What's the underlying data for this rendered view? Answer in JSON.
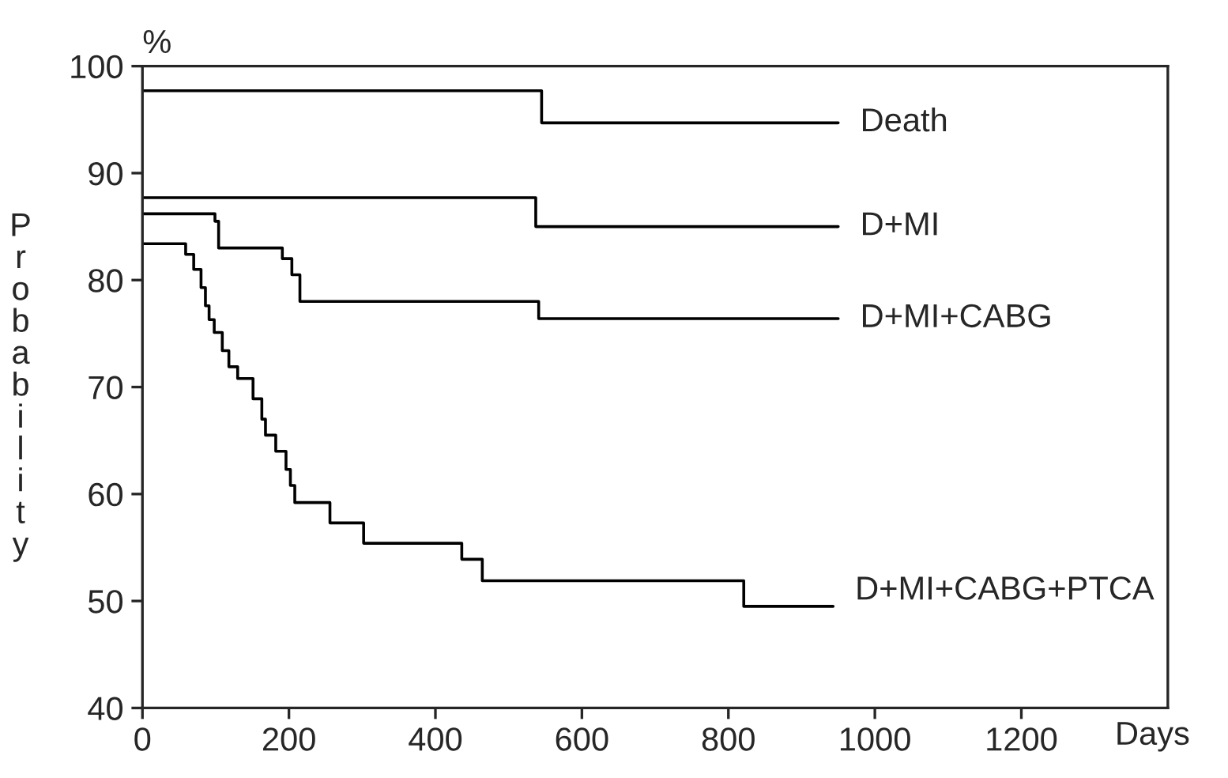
{
  "chart_data": {
    "type": "step",
    "xlabel": "Days",
    "ylabel": "Probability",
    "annotations": [
      "%"
    ],
    "xlim": [
      0,
      1400
    ],
    "xticks": [
      0,
      200,
      400,
      600,
      800,
      1000,
      1200
    ],
    "ylim": [
      40,
      100
    ],
    "yticks": [
      40,
      50,
      60,
      70,
      80,
      90,
      100
    ],
    "grid": false,
    "legend": false,
    "marker": "none",
    "line_style": "solid",
    "series": [
      {
        "name": "Death",
        "color": "#000000",
        "x": [
          0,
          545,
          950
        ],
        "values": [
          97.7,
          94.7,
          94.7
        ]
      },
      {
        "name": "D+MI",
        "color": "#000000",
        "x": [
          0,
          537,
          950
        ],
        "values": [
          87.7,
          85.0,
          85.0
        ]
      },
      {
        "name": "D+MI+CABG",
        "color": "#000000",
        "x": [
          0,
          99,
          104,
          191,
          204,
          215,
          541,
          950
        ],
        "values": [
          86.2,
          85.5,
          83.0,
          82.0,
          80.5,
          78.0,
          76.4,
          76.4
        ]
      },
      {
        "name": "D+MI+CABG+PTCA",
        "color": "#000000",
        "x": [
          0,
          59,
          70,
          80,
          86,
          91,
          98,
          109,
          118,
          130,
          151,
          163,
          168,
          182,
          196,
          202,
          208,
          256,
          302,
          436,
          464,
          821,
          943
        ],
        "values": [
          83.4,
          82.4,
          81.0,
          79.3,
          77.6,
          76.3,
          75.1,
          73.4,
          71.9,
          70.8,
          68.9,
          67.0,
          65.5,
          64.0,
          62.3,
          60.8,
          59.2,
          57.3,
          55.4,
          53.9,
          51.9,
          49.5,
          49.5
        ]
      }
    ]
  }
}
